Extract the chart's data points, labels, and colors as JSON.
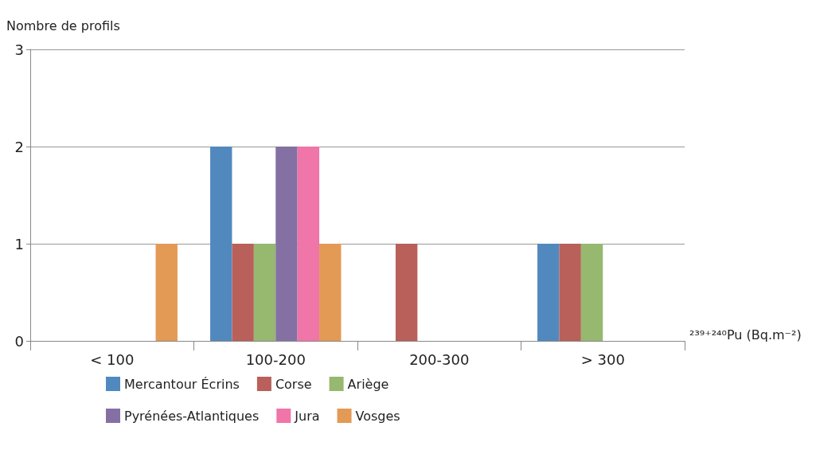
{
  "chart_data": {
    "type": "bar",
    "ylabel": "Nombre de profils",
    "xlabel": "²³⁹⁺²⁴⁰Pu (Bq.m⁻²)",
    "categories": [
      "< 100",
      "100-200",
      "200-300",
      "> 300"
    ],
    "series": [
      {
        "name": "Mercantour Écrins",
        "color": "#5189bf",
        "values": [
          0,
          2,
          0,
          1
        ]
      },
      {
        "name": "Corse",
        "color": "#b9605a",
        "values": [
          0,
          1,
          1,
          1
        ]
      },
      {
        "name": "Ariège",
        "color": "#96b86f",
        "values": [
          0,
          1,
          0,
          1
        ]
      },
      {
        "name": "Pyrénées-Atlantiques",
        "color": "#8570a4",
        "values": [
          0,
          2,
          0,
          0
        ]
      },
      {
        "name": "Jura",
        "color": "#f075a8",
        "values": [
          0,
          2,
          0,
          0
        ]
      },
      {
        "name": "Vosges",
        "color": "#e39a55",
        "values": [
          1,
          1,
          0,
          0
        ]
      }
    ],
    "ylim": [
      0,
      3
    ],
    "yticks": [
      0,
      1,
      2,
      3
    ],
    "grid": "y",
    "legend": "bottom"
  }
}
